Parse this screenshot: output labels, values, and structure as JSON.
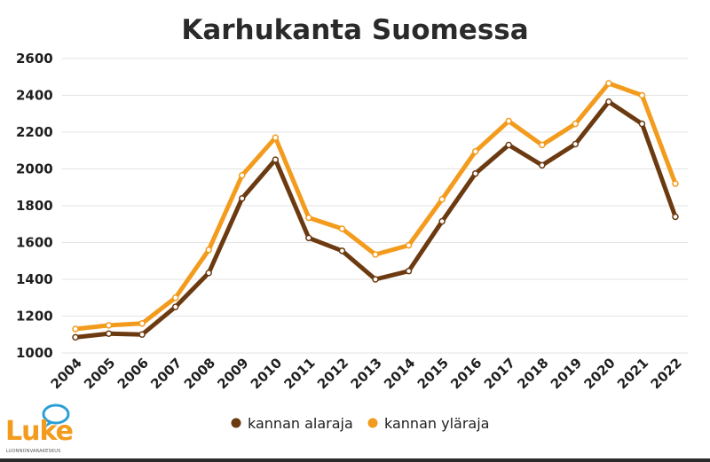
{
  "chart_data": {
    "type": "line",
    "title": "Karhukanta Suomessa",
    "xlabel": "",
    "ylabel": "",
    "ylim": [
      1000,
      2600
    ],
    "yticks": [
      1000,
      1200,
      1400,
      1600,
      1800,
      2000,
      2200,
      2400,
      2600
    ],
    "categories": [
      "2004",
      "2005",
      "2006",
      "2007",
      "2008",
      "2009",
      "2010",
      "2011",
      "2012",
      "2013",
      "2014",
      "2015",
      "2016",
      "2017",
      "2018",
      "2019",
      "2020",
      "2021",
      "2022"
    ],
    "series": [
      {
        "name": "kannan alaraja",
        "color": "#6b3a10",
        "values": [
          1085,
          1105,
          1100,
          1250,
          1435,
          1840,
          2050,
          1625,
          1555,
          1400,
          1445,
          1715,
          1975,
          2130,
          2020,
          2135,
          2365,
          2245,
          1740
        ]
      },
      {
        "name": "kannan yläraja",
        "color": "#f39b1c",
        "values": [
          1130,
          1150,
          1160,
          1300,
          1560,
          1965,
          2170,
          1735,
          1675,
          1535,
          1585,
          1835,
          2095,
          2260,
          2130,
          2245,
          2465,
          2400,
          1920
        ]
      }
    ],
    "grid": true,
    "legend_position": "bottom-center"
  },
  "logo": {
    "name": "Luke",
    "subtitle": "LUONNONVARAKESKUS"
  },
  "colors": {
    "dark_series": "#6b3a10",
    "light_series": "#f39b1c",
    "marker_fill": "#ffffff"
  }
}
